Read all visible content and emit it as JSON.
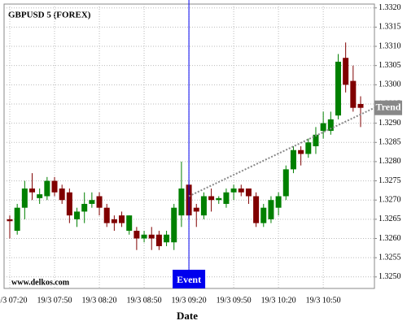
{
  "chart_data": {
    "type": "candlestick",
    "title": "GBPUSD 5 (FOREX)",
    "x_label": "Date",
    "watermark": "www.delkos.com",
    "categories": [
      "19/3 07:20",
      null,
      null,
      null,
      null,
      null,
      "19/3 07:50",
      null,
      null,
      null,
      null,
      null,
      "19/3 08:20",
      null,
      null,
      null,
      null,
      null,
      "19/3 08:50",
      null,
      null,
      null,
      null,
      null,
      "19/3 09:20",
      null,
      null,
      null,
      null,
      null,
      "19/3 09:50",
      null,
      null,
      null,
      null,
      null,
      "19/3 10:20",
      null,
      null,
      null,
      null,
      null,
      "19/3 10:50",
      null,
      null,
      null,
      null,
      null
    ],
    "open": [
      1.3265,
      1.3262,
      1.3268,
      1.3273,
      1.32705,
      1.3271,
      1.3275,
      1.3273,
      1.3272,
      1.3265,
      1.3267,
      1.3269,
      1.3271,
      1.3268,
      1.3265,
      1.3266,
      1.3262,
      1.3262,
      1.326,
      1.3261,
      1.3261,
      1.3259,
      1.3259,
      1.3266,
      1.3274,
      1.3268,
      1.3266,
      1.3271,
      1.327,
      1.3269,
      1.3272,
      1.3273,
      1.3273,
      1.3271,
      1.3264,
      1.3265,
      1.3268,
      1.3271,
      1.3278,
      1.3283,
      1.3282,
      1.3284,
      1.3288,
      1.3288,
      1.3292,
      1.3307,
      1.3301,
      1.3295
    ],
    "high": [
      1.3266,
      1.3269,
      1.3275,
      1.3277,
      1.3273,
      1.3276,
      1.3276,
      1.3274,
      1.3273,
      1.3268,
      1.3272,
      1.3272,
      1.3272,
      1.3269,
      1.3266,
      1.3267,
      1.3266,
      1.3263,
      1.3262,
      1.3263,
      1.3262,
      1.3262,
      1.3269,
      1.328,
      1.3275,
      1.3269,
      1.3272,
      1.3273,
      1.3271,
      1.3273,
      1.3274,
      1.3274,
      1.3273,
      1.3272,
      1.3269,
      1.3271,
      1.3272,
      1.3279,
      1.3284,
      1.3284,
      1.3286,
      1.3289,
      1.3293,
      1.3293,
      1.3308,
      1.3311,
      1.3305,
      1.3297
    ],
    "low": [
      1.326,
      1.3261,
      1.3265,
      1.327,
      1.3269,
      1.327,
      1.3271,
      1.3269,
      1.3264,
      1.3263,
      1.3264,
      1.3268,
      1.3266,
      1.3263,
      1.3262,
      1.3263,
      1.3261,
      1.3257,
      1.3259,
      1.3257,
      1.3257,
      1.3258,
      1.3257,
      1.3263,
      1.3265,
      1.3263,
      1.3265,
      1.3267,
      1.3269,
      1.3268,
      1.327,
      1.3271,
      1.3269,
      1.3263,
      1.3263,
      1.3264,
      1.3266,
      1.327,
      1.3277,
      1.3279,
      1.3281,
      1.3282,
      1.3286,
      1.3287,
      1.3291,
      1.3298,
      1.3293,
      1.3289
    ],
    "close": [
      1.32645,
      1.3268,
      1.3273,
      1.3272,
      1.32715,
      1.3275,
      1.3272,
      1.327,
      1.3266,
      1.3267,
      1.3269,
      1.327,
      1.3268,
      1.3264,
      1.3264,
      1.3264,
      1.3266,
      1.326,
      1.3261,
      1.326,
      1.3258,
      1.3261,
      1.3268,
      1.3273,
      1.3266,
      1.3267,
      1.3271,
      1.327,
      1.32705,
      1.3272,
      1.3273,
      1.3272,
      1.3271,
      1.3264,
      1.3268,
      1.327,
      1.3271,
      1.3278,
      1.3283,
      1.3282,
      1.3285,
      1.3287,
      1.329,
      1.3291,
      1.3306,
      1.33,
      1.3294,
      1.3294
    ],
    "up_color": "#008000",
    "down_color": "#800000",
    "ylim": [
      1.3247,
      1.3321
    ],
    "yticks": [
      {
        "value": 1.325,
        "label": "1.3250"
      },
      1.3255,
      {
        "value": 1.326,
        "label": "1.3260"
      },
      1.3265,
      {
        "value": 1.327,
        "label": "1.3270"
      },
      1.3275,
      {
        "value": 1.328,
        "label": "1.3280"
      },
      1.3285,
      {
        "value": 1.329,
        "label": "1.3290"
      },
      1.3295,
      {
        "value": 1.33,
        "label": "1.3300"
      },
      1.3305,
      {
        "value": 1.331,
        "label": "1.3310"
      },
      1.3315,
      {
        "value": 1.332,
        "label": "1.3320"
      }
    ],
    "grid": true,
    "event": {
      "label": "Event",
      "at": "19/3 09:20",
      "color": "#0000ee"
    },
    "trend": {
      "label": "Trend",
      "values": [
        1.3271,
        1.3294
      ],
      "color": "#888888"
    }
  }
}
